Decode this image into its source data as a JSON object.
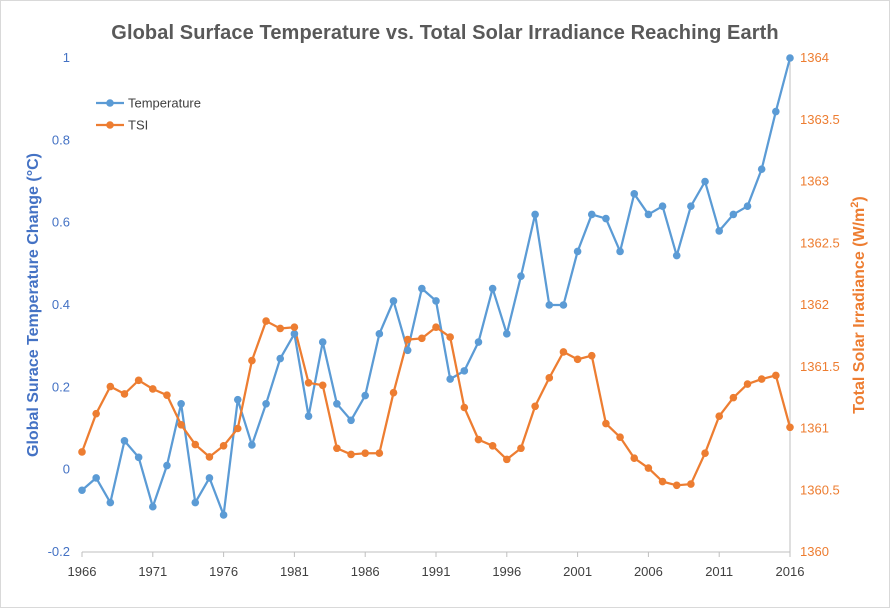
{
  "chart_data": {
    "type": "line",
    "title": "Global Surface Temperature vs. Total Solar Irradiance Reaching Earth",
    "xlabel": "",
    "x": [
      1966,
      1967,
      1968,
      1969,
      1970,
      1971,
      1972,
      1973,
      1974,
      1975,
      1976,
      1977,
      1978,
      1979,
      1980,
      1981,
      1982,
      1983,
      1984,
      1985,
      1986,
      1987,
      1988,
      1989,
      1990,
      1991,
      1992,
      1993,
      1994,
      1995,
      1996,
      1997,
      1998,
      1999,
      2000,
      2001,
      2002,
      2003,
      2004,
      2005,
      2006,
      2007,
      2008,
      2009,
      2010,
      2011,
      2012,
      2013,
      2014,
      2015,
      2016
    ],
    "xlim": [
      1966,
      2016
    ],
    "x_ticks": [
      "1966",
      "1971",
      "1976",
      "1981",
      "1986",
      "1991",
      "1996",
      "2001",
      "2006",
      "2011",
      "2016"
    ],
    "y_left": {
      "label": "Global Surace Temperature Change (°C)",
      "lim": [
        -0.2,
        1
      ],
      "ticks": [
        "-0.2",
        "0",
        "0.2",
        "0.4",
        "0.6",
        "0.8",
        "1"
      ],
      "color": "#4472c4"
    },
    "y_right": {
      "label": "Total Solar Irradiance (W/m",
      "label_sup": "2",
      "label_end": ")",
      "lim": [
        1360,
        1364
      ],
      "ticks": [
        "1360",
        "1360.5",
        "1361",
        "1361.5",
        "1362",
        "1362.5",
        "1363",
        "1363.5",
        "1364"
      ],
      "color": "#ed7d31"
    },
    "series": [
      {
        "name": "Temperature",
        "axis": "left",
        "color": "#5b9bd5",
        "values": [
          -0.05,
          -0.02,
          -0.08,
          0.07,
          0.03,
          -0.09,
          0.01,
          0.16,
          -0.08,
          -0.02,
          -0.11,
          0.17,
          0.06,
          0.16,
          0.27,
          0.33,
          0.13,
          0.31,
          0.16,
          0.12,
          0.18,
          0.33,
          0.41,
          0.29,
          0.44,
          0.41,
          0.22,
          0.24,
          0.31,
          0.44,
          0.33,
          0.47,
          0.62,
          0.4,
          0.4,
          0.53,
          0.62,
          0.61,
          0.53,
          0.67,
          0.62,
          0.64,
          0.52,
          0.64,
          0.7,
          0.58,
          0.62,
          0.64,
          0.73,
          0.87,
          1.0
        ]
      },
      {
        "name": "TSI",
        "axis": "right",
        "color": "#ed7d31",
        "values": [
          1360.81,
          1361.12,
          1361.34,
          1361.28,
          1361.39,
          1361.32,
          1361.27,
          1361.03,
          1360.87,
          1360.77,
          1360.86,
          1361.0,
          1361.55,
          1361.87,
          1361.81,
          1361.82,
          1361.37,
          1361.35,
          1360.84,
          1360.79,
          1360.8,
          1360.8,
          1361.29,
          1361.72,
          1361.73,
          1361.82,
          1361.74,
          1361.17,
          1360.91,
          1360.86,
          1360.75,
          1360.84,
          1361.18,
          1361.41,
          1361.62,
          1361.56,
          1361.59,
          1361.04,
          1360.93,
          1360.76,
          1360.68,
          1360.57,
          1360.54,
          1360.55,
          1360.8,
          1361.1,
          1361.25,
          1361.36,
          1361.4,
          1361.43,
          1361.01
        ]
      }
    ],
    "legend_position": "top-left",
    "grid": false
  }
}
